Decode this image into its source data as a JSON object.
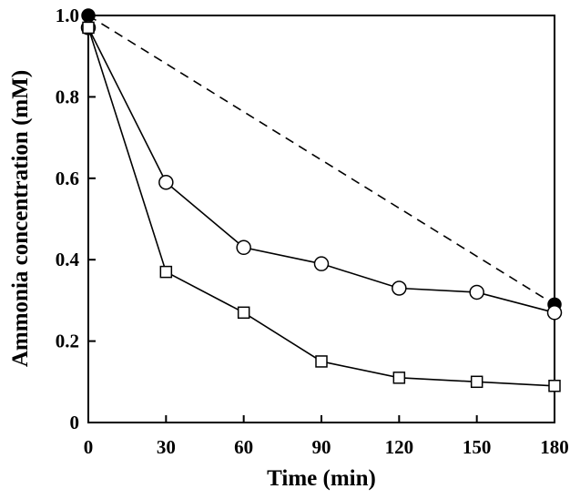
{
  "chart_data": {
    "type": "line",
    "title": "",
    "xlabel": "Time (min)",
    "ylabel": "Ammonia concentration (mM)",
    "xlim": [
      0,
      180
    ],
    "ylim": [
      0,
      1.0
    ],
    "xticks": [
      0,
      30,
      60,
      90,
      120,
      150,
      180
    ],
    "yticks": [
      0,
      0.2,
      0.4,
      0.6,
      0.8,
      1.0
    ],
    "xtick_labels": [
      "0",
      "30",
      "60",
      "90",
      "120",
      "150",
      "180"
    ],
    "ytick_labels": [
      "0",
      "0.2",
      "0.4",
      "0.6",
      "0.8",
      "1.0"
    ],
    "grid": false,
    "legend": "none",
    "series": [
      {
        "marker": "filled-circle",
        "line": "dashed",
        "x": [
          0,
          180
        ],
        "y": [
          1.0,
          0.29
        ]
      },
      {
        "marker": "open-circle",
        "line": "solid",
        "x": [
          0,
          30,
          60,
          90,
          120,
          150,
          180
        ],
        "y": [
          0.97,
          0.59,
          0.43,
          0.39,
          0.33,
          0.32,
          0.27
        ]
      },
      {
        "marker": "open-square",
        "line": "solid",
        "x": [
          0,
          30,
          60,
          90,
          120,
          150,
          180
        ],
        "y": [
          0.97,
          0.37,
          0.27,
          0.15,
          0.11,
          0.1,
          0.09
        ]
      }
    ]
  }
}
